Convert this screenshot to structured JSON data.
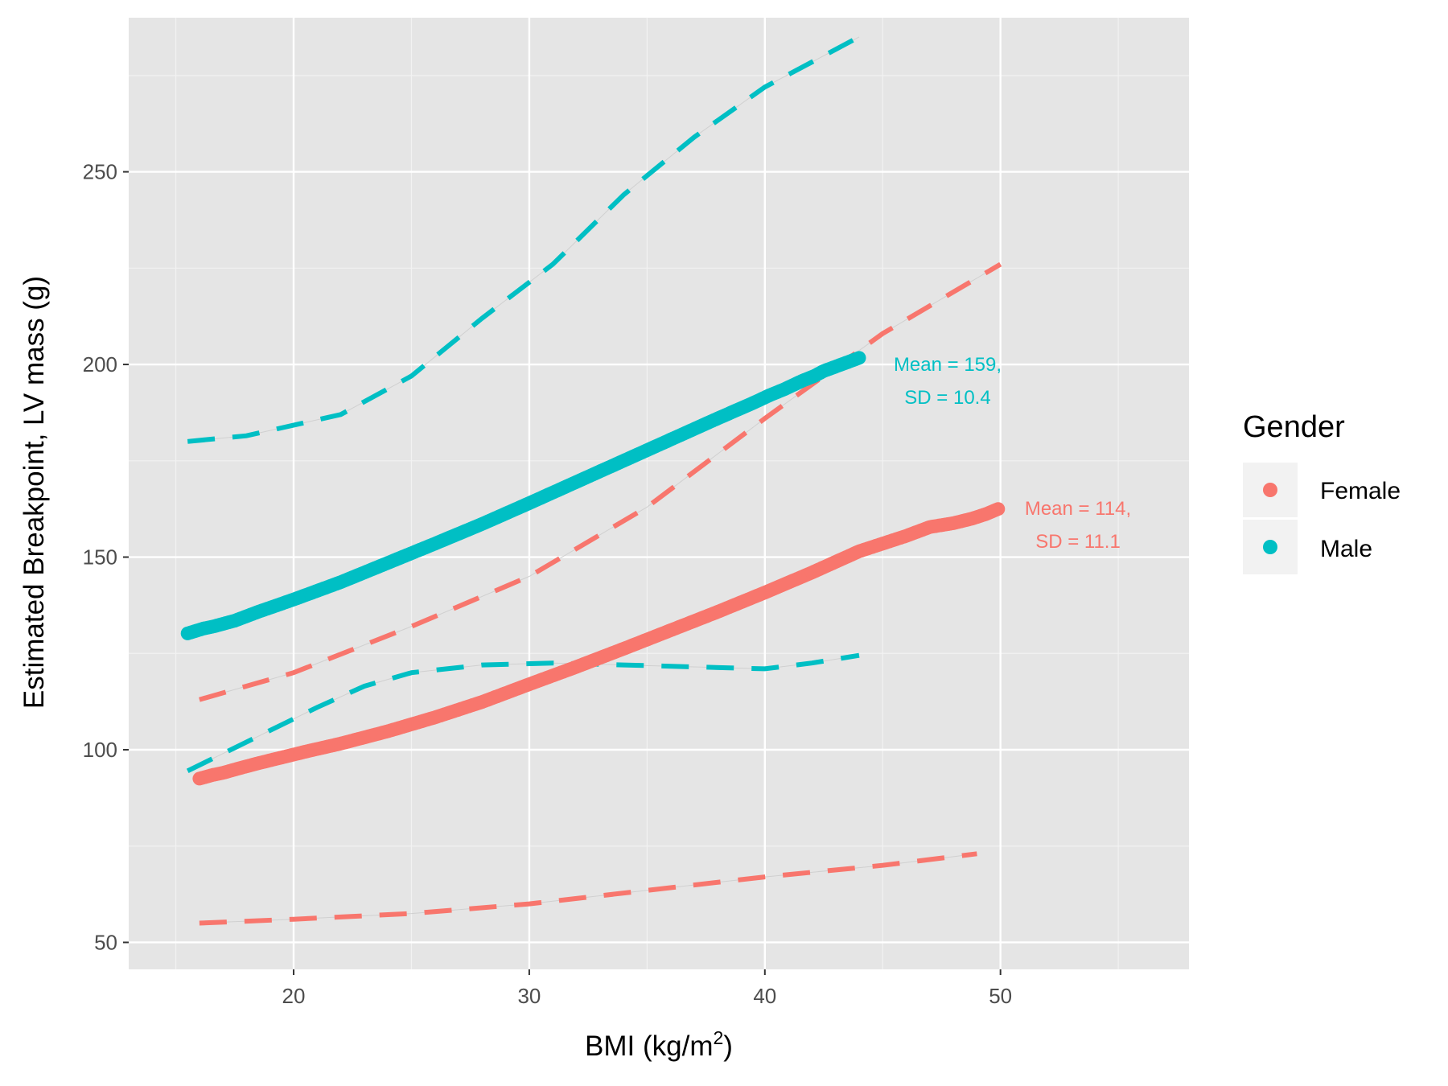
{
  "chart_data": {
    "type": "scatter",
    "xlabel_main": "BMI (kg/m",
    "xlabel_sup": "2",
    "xlabel_close": ")",
    "ylabel": "Estimated Breakpoint, LV mass (g)",
    "xlim": [
      13,
      58
    ],
    "ylim": [
      43,
      290
    ],
    "x_ticks": [
      20,
      30,
      40,
      50
    ],
    "x_tick_labels": [
      "20",
      "30",
      "40",
      "50"
    ],
    "y_ticks": [
      50,
      100,
      150,
      200,
      250
    ],
    "y_tick_labels": [
      "50",
      "100",
      "150",
      "200",
      "250"
    ],
    "grid": true,
    "legend": {
      "title": "Gender",
      "position": "right",
      "entries": [
        {
          "label": "Female",
          "color": "#F8766D"
        },
        {
          "label": "Male",
          "color": "#00BFC4"
        }
      ]
    },
    "series": [
      {
        "name": "Female",
        "color": "#F8766D",
        "points": [
          [
            16.0,
            92.5
          ],
          [
            16.6,
            93.5
          ],
          [
            17.0,
            94.0
          ],
          [
            17.7,
            95.2
          ],
          [
            18.5,
            96.5
          ],
          [
            19.5,
            98.0
          ],
          [
            20.5,
            99.5
          ],
          [
            22,
            101.6
          ],
          [
            24,
            104.8
          ],
          [
            26,
            108.4
          ],
          [
            28,
            112.4
          ],
          [
            30,
            117.0
          ],
          [
            32,
            121.5
          ],
          [
            34,
            126.2
          ],
          [
            36,
            131.0
          ],
          [
            38,
            135.8
          ],
          [
            40,
            140.8
          ],
          [
            42,
            146.0
          ],
          [
            44,
            151.5
          ],
          [
            46,
            155.5
          ],
          [
            47,
            157.8
          ],
          [
            48,
            158.8
          ],
          [
            48.8,
            160.0
          ],
          [
            49.4,
            161.2
          ],
          [
            49.9,
            162.5
          ]
        ],
        "band_upper": [
          [
            16.0,
            113
          ],
          [
            20,
            120
          ],
          [
            25,
            132
          ],
          [
            30,
            145
          ],
          [
            35,
            163
          ],
          [
            40,
            186
          ],
          [
            45,
            208
          ],
          [
            50,
            226
          ]
        ],
        "band_lower": [
          [
            16.0,
            55
          ],
          [
            20,
            56
          ],
          [
            25,
            57.5
          ],
          [
            30,
            60
          ],
          [
            35,
            63.5
          ],
          [
            40,
            67
          ],
          [
            45,
            70
          ],
          [
            49,
            73
          ]
        ],
        "annotation": [
          "Mean = 114,",
          "SD = 11.1"
        ]
      },
      {
        "name": "Male",
        "color": "#00BFC4",
        "points": [
          [
            15.5,
            130.2
          ],
          [
            16.2,
            131.5
          ],
          [
            16.6,
            132.0
          ],
          [
            17.5,
            133.5
          ],
          [
            18.5,
            135.8
          ],
          [
            20,
            139.0
          ],
          [
            22,
            143.5
          ],
          [
            24,
            148.5
          ],
          [
            26,
            153.5
          ],
          [
            28,
            158.6
          ],
          [
            30,
            164.0
          ],
          [
            32,
            169.5
          ],
          [
            34,
            175.0
          ],
          [
            36,
            180.5
          ],
          [
            38,
            186.0
          ],
          [
            39.5,
            190.0
          ],
          [
            40.2,
            192.0
          ],
          [
            40.8,
            193.5
          ],
          [
            41.6,
            195.8
          ],
          [
            42.1,
            197.0
          ],
          [
            42.5,
            198.3
          ],
          [
            44.0,
            201.7
          ]
        ],
        "band_upper": [
          [
            15.5,
            180
          ],
          [
            18,
            181.5
          ],
          [
            22,
            187
          ],
          [
            25,
            197
          ],
          [
            28,
            212
          ],
          [
            31,
            226
          ],
          [
            34,
            244
          ],
          [
            37,
            259
          ],
          [
            40,
            272
          ],
          [
            44,
            285
          ]
        ],
        "band_lower": [
          [
            15.5,
            94.5
          ],
          [
            18,
            102
          ],
          [
            21,
            111
          ],
          [
            23,
            116.5
          ],
          [
            25,
            120
          ],
          [
            28,
            122
          ],
          [
            31,
            122.5
          ],
          [
            34,
            122
          ],
          [
            37,
            121.5
          ],
          [
            40,
            121
          ],
          [
            42,
            122.5
          ],
          [
            44,
            124.5
          ]
        ],
        "annotation": [
          "Mean = 159,",
          "SD = 10.4"
        ]
      }
    ]
  }
}
